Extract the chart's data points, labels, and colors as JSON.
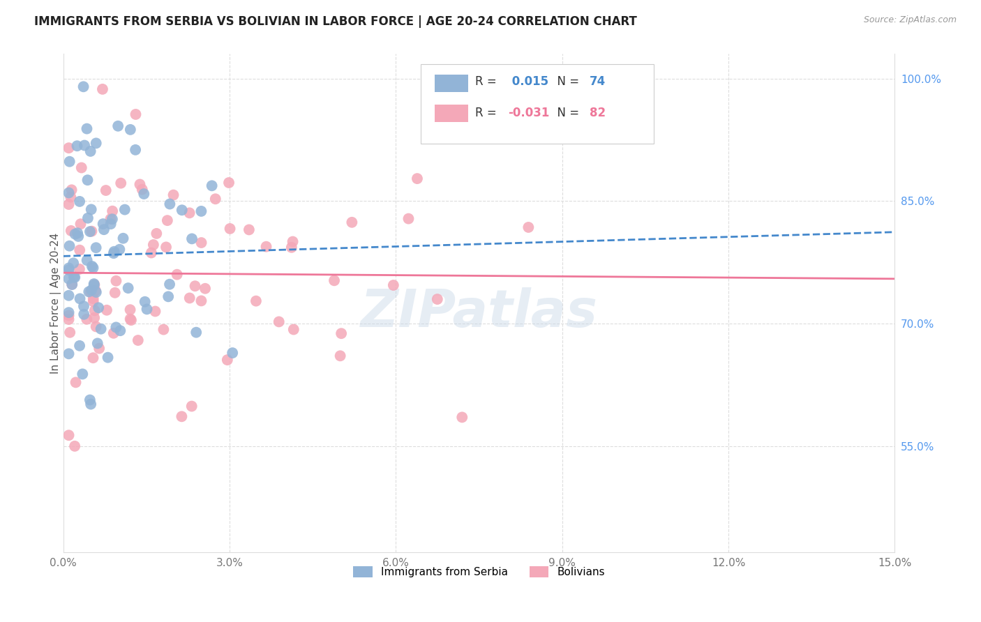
{
  "title": "IMMIGRANTS FROM SERBIA VS BOLIVIAN IN LABOR FORCE | AGE 20-24 CORRELATION CHART",
  "source": "Source: ZipAtlas.com",
  "ylabel": "In Labor Force | Age 20-24",
  "xlim": [
    0.0,
    0.15
  ],
  "ylim": [
    0.42,
    1.03
  ],
  "ytick_values": [
    0.55,
    0.7,
    0.85,
    1.0
  ],
  "ytick_labels": [
    "55.0%",
    "70.0%",
    "85.0%",
    "100.0%"
  ],
  "xtick_values": [
    0.0,
    0.03,
    0.06,
    0.09,
    0.12,
    0.15
  ],
  "xtick_labels": [
    "0.0%",
    "3.0%",
    "6.0%",
    "9.0%",
    "12.0%",
    "15.0%"
  ],
  "legend_R_serbia": " 0.015",
  "legend_N_serbia": "74",
  "legend_R_bolivian": "-0.031",
  "legend_N_bolivian": "82",
  "color_serbia": "#92B4D7",
  "color_bolivian": "#F4A8B8",
  "color_serbia_line": "#4488CC",
  "color_bolivian_line": "#EE7799",
  "color_right_axis": "#5599EE",
  "watermark": "ZIPatlas",
  "serbia_line_slope": 0.08,
  "serbia_line_intercept": 0.775,
  "bolivia_line_slope": -0.06,
  "bolivia_line_intercept": 0.782
}
